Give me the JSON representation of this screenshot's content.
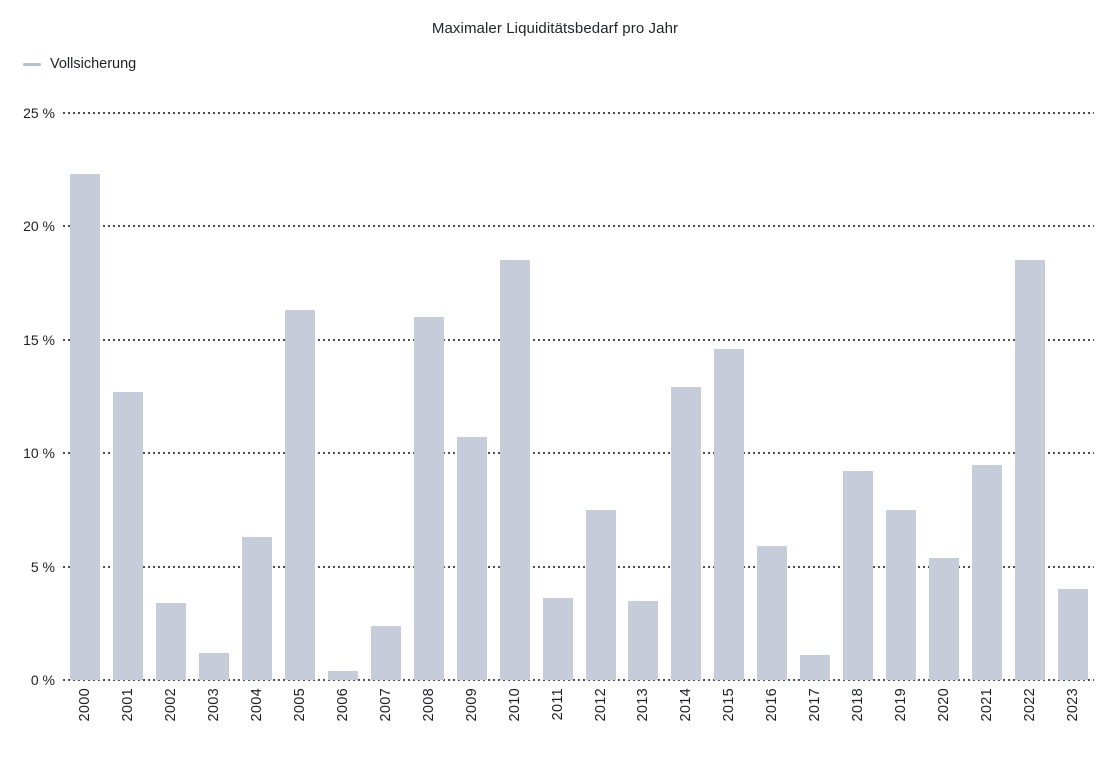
{
  "title": "Maximaler Liquiditätsbedarf pro Jahr",
  "legend": {
    "label": "Vollsicherung",
    "marker_color": "#b6c0d1"
  },
  "chart_data": {
    "type": "bar",
    "title": "Maximaler Liquiditätsbedarf pro Jahr",
    "xlabel": "",
    "ylabel": "",
    "categories": [
      "2000",
      "2001",
      "2002",
      "2003",
      "2004",
      "2005",
      "2006",
      "2007",
      "2008",
      "2009",
      "2010",
      "2011",
      "2012",
      "2013",
      "2014",
      "2015",
      "2016",
      "2017",
      "2018",
      "2019",
      "2020",
      "2021",
      "2022",
      "2023"
    ],
    "series": [
      {
        "name": "Vollsicherung",
        "values": [
          22.3,
          12.7,
          3.4,
          1.2,
          6.3,
          16.3,
          0.4,
          2.4,
          16.0,
          10.7,
          18.5,
          3.6,
          7.5,
          3.5,
          12.9,
          14.6,
          5.9,
          1.1,
          9.2,
          7.5,
          5.4,
          9.5,
          18.5,
          4.0
        ]
      }
    ],
    "ylim": [
      0,
      25
    ],
    "yticks": [
      {
        "value": 0,
        "label": "0 %"
      },
      {
        "value": 5,
        "label": "5 %"
      },
      {
        "value": 10,
        "label": "10 %"
      },
      {
        "value": 15,
        "label": "15 %"
      },
      {
        "value": 20,
        "label": "20 %"
      },
      {
        "value": 25,
        "label": "25 %"
      }
    ],
    "grid": "horizontal-dotted",
    "legend_position": "top-left",
    "bar_color": "#c6ccd9",
    "grid_color": "#4f4f52",
    "text_color": "#1d1f23",
    "background": "#ffffff"
  }
}
